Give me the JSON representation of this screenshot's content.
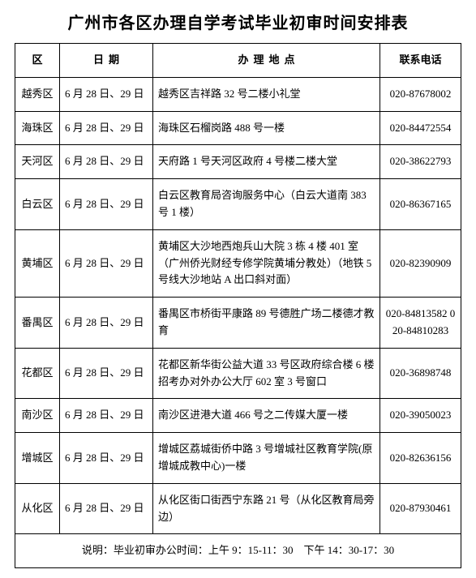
{
  "title": "广州市各区办理自学考试毕业初审时间安排表",
  "headers": {
    "district": "区",
    "date": "日期",
    "location": "办理地点",
    "phone": "联系电话"
  },
  "rows": [
    {
      "district": "越秀区",
      "date": "6 月 28 日、29 日",
      "location": "越秀区吉祥路 32 号二楼小礼堂",
      "phone": "020-87678002"
    },
    {
      "district": "海珠区",
      "date": "6 月 28 日、29 日",
      "location": "海珠区石榴岗路 488 号一楼",
      "phone": "020-84472554"
    },
    {
      "district": "天河区",
      "date": "6 月 28 日、29 日",
      "location": "天府路 1 号天河区政府 4 号楼二楼大堂",
      "phone": "020-38622793"
    },
    {
      "district": "白云区",
      "date": "6 月 28 日、29 日",
      "location": "白云区教育局咨询服务中心（白云大道南 383 号 1 楼）",
      "phone": "020-86367165"
    },
    {
      "district": "黄埔区",
      "date": "6 月 28 日、29 日",
      "location": "黄埔区大沙地西炮兵山大院 3 栋 4 楼 401 室（广州侨光财经专修学院黄埔分教处）（地铁 5 号线大沙地站 A 出口斜对面）",
      "phone": "020-82390909"
    },
    {
      "district": "番禺区",
      "date": "6 月 28 日、29 日",
      "location": "番禺区市桥街平康路 89 号德胜广场二楼德才教育",
      "phone": "020-84813582 020-84810283"
    },
    {
      "district": "花都区",
      "date": "6 月 28 日、29 日",
      "location": "花都区新华街公益大道 33 号区政府综合楼 6 楼招考办对外办公大厅 602 室 3 号窗口",
      "phone": "020-36898748"
    },
    {
      "district": "南沙区",
      "date": "6 月 28 日、29 日",
      "location": "南沙区进港大道 466 号之二传媒大厦一楼",
      "phone": "020-39050023"
    },
    {
      "district": "增城区",
      "date": "6 月 28 日、29 日",
      "location": "增城区荔城街侨中路 3 号增城社区教育学院(原增城成教中心)一楼",
      "phone": "020-82636156"
    },
    {
      "district": "从化区",
      "date": "6 月 28 日、29 日",
      "location": "从化区街口街西宁东路 21 号（从化区教育局旁边）",
      "phone": "020-87930461"
    }
  ],
  "note": "说明：毕业初审办公时间：上午 9：15-11：30　下午 14：30-17：30",
  "colors": {
    "background": "#ffffff",
    "text": "#000000",
    "border": "#000000"
  },
  "typography": {
    "title_font": "SimHei",
    "title_fontsize": 20,
    "body_font": "SimSun",
    "body_fontsize": 13
  }
}
